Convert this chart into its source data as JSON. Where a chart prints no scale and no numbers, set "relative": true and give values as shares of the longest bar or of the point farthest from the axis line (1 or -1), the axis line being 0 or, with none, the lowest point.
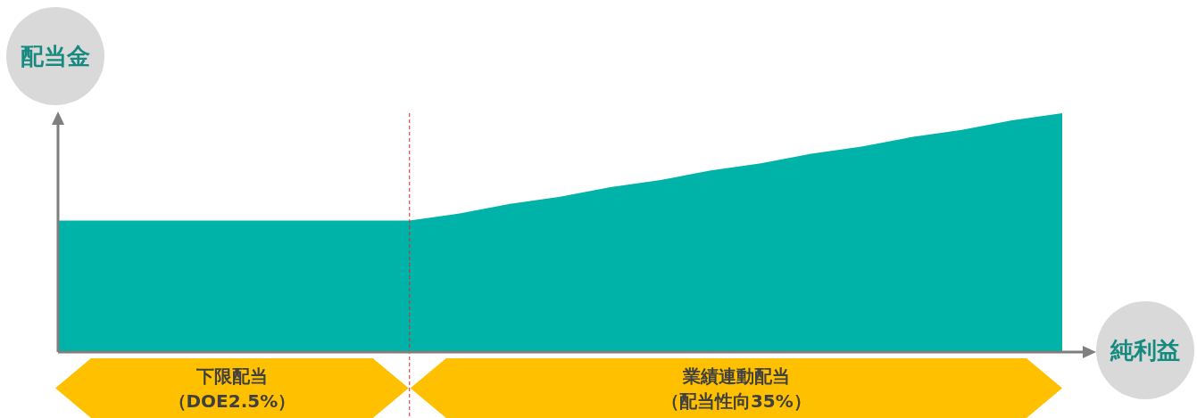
{
  "chart_data": {
    "type": "area",
    "relative": true,
    "xlabel": "純利益",
    "ylabel": "配当金",
    "categories": [
      null,
      null,
      null,
      null,
      null,
      null,
      null,
      null,
      null,
      null,
      null,
      null,
      null,
      null,
      null,
      null,
      null,
      null,
      null,
      null,
      null
    ],
    "series": [
      {
        "color": "#00b3a8",
        "values": [
          0.55,
          0.55,
          0.55,
          0.55,
          0.55,
          0.55,
          0.55,
          0.55,
          0.58,
          0.62,
          0.65,
          0.69,
          0.72,
          0.76,
          0.79,
          0.83,
          0.86,
          0.9,
          0.93,
          0.97,
          1
        ]
      }
    ],
    "annotations": [
      "下限配当（DOE2.5%）",
      "業績連動配当（配当性向35%）"
    ],
    "marker": "none",
    "grid": false,
    "legend": false
  }
}
